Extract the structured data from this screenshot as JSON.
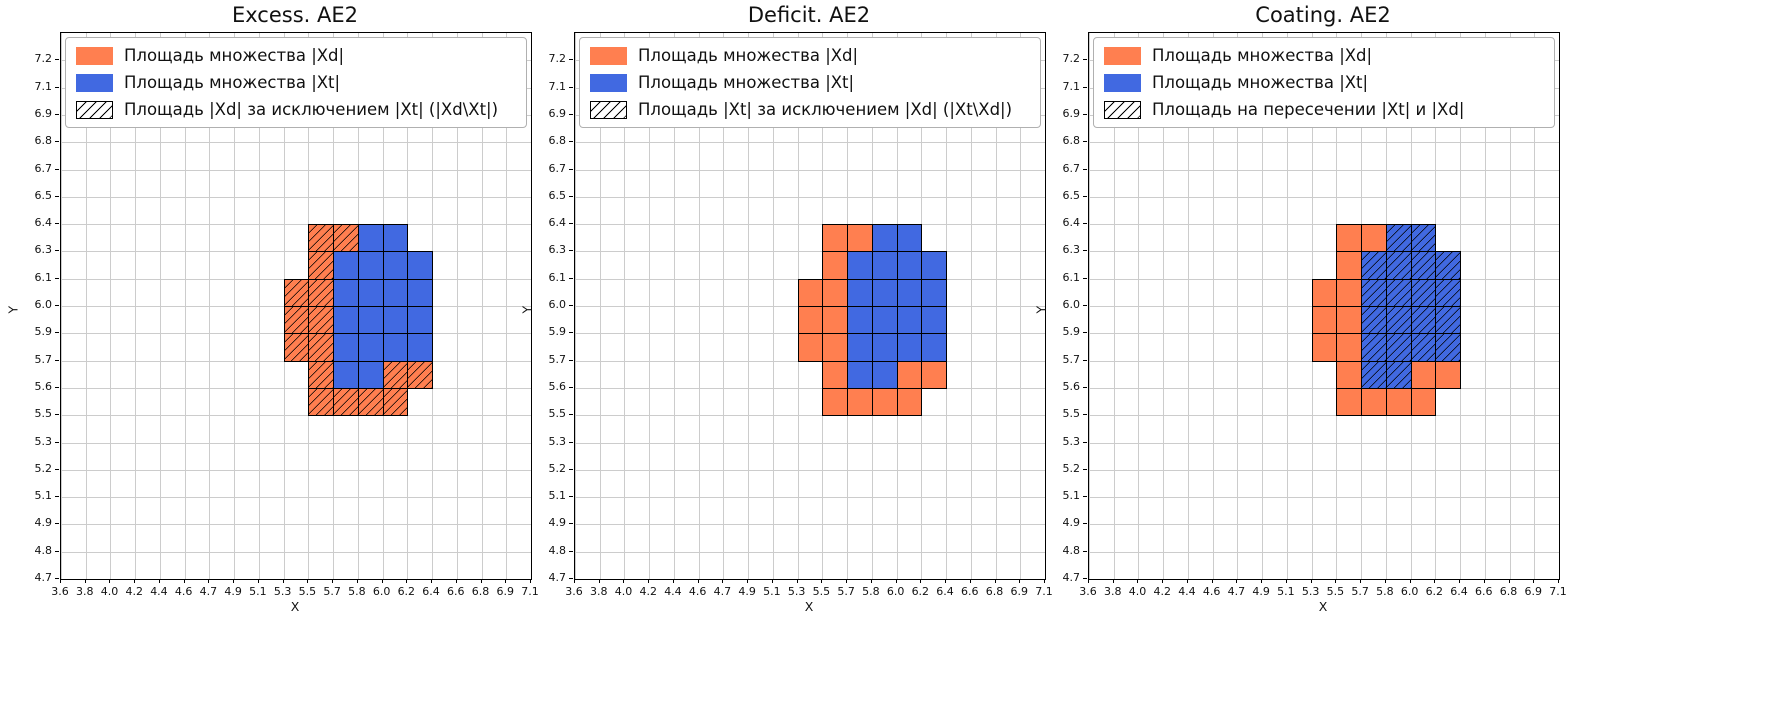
{
  "page": {
    "background": "#ffffff"
  },
  "chart_data": {
    "type": "heatmap",
    "note": "Three aligned grid plots comparing two cell sets: Xd (orange) and Xt (blue). Blue Xt cells are drawn on top; a diagonal hatch overlay marks a different set in each subplot (Xd\\Xt, Xt\\Xd = empty, Xt intersect Xd).",
    "xlabel": "X",
    "ylabel": "Y",
    "x_ticks": [
      "3.6",
      "3.8",
      "4.0",
      "4.2",
      "4.4",
      "4.6",
      "4.7",
      "4.9",
      "5.1",
      "5.3",
      "5.5",
      "5.7",
      "5.8",
      "6.0",
      "6.2",
      "6.4",
      "6.6",
      "6.8",
      "6.9",
      "7.1"
    ],
    "y_ticks_top_to_bottom": [
      "7.2",
      "7.1",
      "6.9",
      "6.8",
      "6.7",
      "6.5",
      "6.4",
      "6.3",
      "6.1",
      "6.0",
      "5.9",
      "5.7",
      "5.6",
      "5.5",
      "5.3",
      "5.2",
      "5.1",
      "4.9",
      "4.8",
      "4.7"
    ],
    "coords_note": "cells are [x_tick_index, y_tick_index]: a cell spans x_ticks[i]..x_ticks[i+1] horizontally and y_ticks[j]..y_ticks[j+1] vertically",
    "cells": {
      "xd_orange": [
        [
          10,
          6
        ],
        [
          11,
          6
        ],
        [
          10,
          7
        ],
        [
          9,
          8
        ],
        [
          10,
          8
        ],
        [
          9,
          9
        ],
        [
          10,
          9
        ],
        [
          9,
          10
        ],
        [
          10,
          10
        ],
        [
          10,
          11
        ],
        [
          13,
          11
        ],
        [
          14,
          11
        ],
        [
          10,
          12
        ],
        [
          11,
          12
        ],
        [
          12,
          12
        ],
        [
          13,
          12
        ]
      ],
      "xt_blue": [
        [
          12,
          6
        ],
        [
          13,
          6
        ],
        [
          11,
          7
        ],
        [
          12,
          7
        ],
        [
          13,
          7
        ],
        [
          14,
          7
        ],
        [
          11,
          8
        ],
        [
          12,
          8
        ],
        [
          13,
          8
        ],
        [
          14,
          8
        ],
        [
          11,
          9
        ],
        [
          12,
          9
        ],
        [
          13,
          9
        ],
        [
          14,
          9
        ],
        [
          11,
          10
        ],
        [
          12,
          10
        ],
        [
          13,
          10
        ],
        [
          14,
          10
        ],
        [
          11,
          11
        ],
        [
          12,
          11
        ]
      ]
    },
    "colors": {
      "xd_orange": "#FF7F50",
      "xt_blue": "#4169E1",
      "grid": "#cccccc",
      "cell_edge": "#000000",
      "hatch": "#000000"
    },
    "subplots": [
      {
        "title": "Excess. AE2",
        "hatch_on": "xd_orange",
        "legend": [
          {
            "swatch": "orange",
            "label": "Площадь множества |Xd|"
          },
          {
            "swatch": "blue",
            "label": "Площадь множества  |Xt|"
          },
          {
            "swatch": "hatch",
            "label": "Площадь |Xd| за исключением |Xt| (|Xd\\Xt|)"
          }
        ]
      },
      {
        "title": "Deficit. AE2",
        "hatch_on": "none",
        "legend": [
          {
            "swatch": "orange",
            "label": "Площадь множества |Xd|"
          },
          {
            "swatch": "blue",
            "label": "Площадь множества  |Xt|"
          },
          {
            "swatch": "hatch",
            "label": "Площадь |Xt| за исключением |Xd| (|Xt\\Xd|)"
          }
        ]
      },
      {
        "title": "Coating. AE2",
        "hatch_on": "xt_blue",
        "legend": [
          {
            "swatch": "orange",
            "label": "Площадь множества |Xd|"
          },
          {
            "swatch": "blue",
            "label": "Площадь множества  |Xt|"
          },
          {
            "swatch": "hatch",
            "label": "Площадь на пересечении |Xt| и |Xd|"
          }
        ]
      }
    ]
  }
}
